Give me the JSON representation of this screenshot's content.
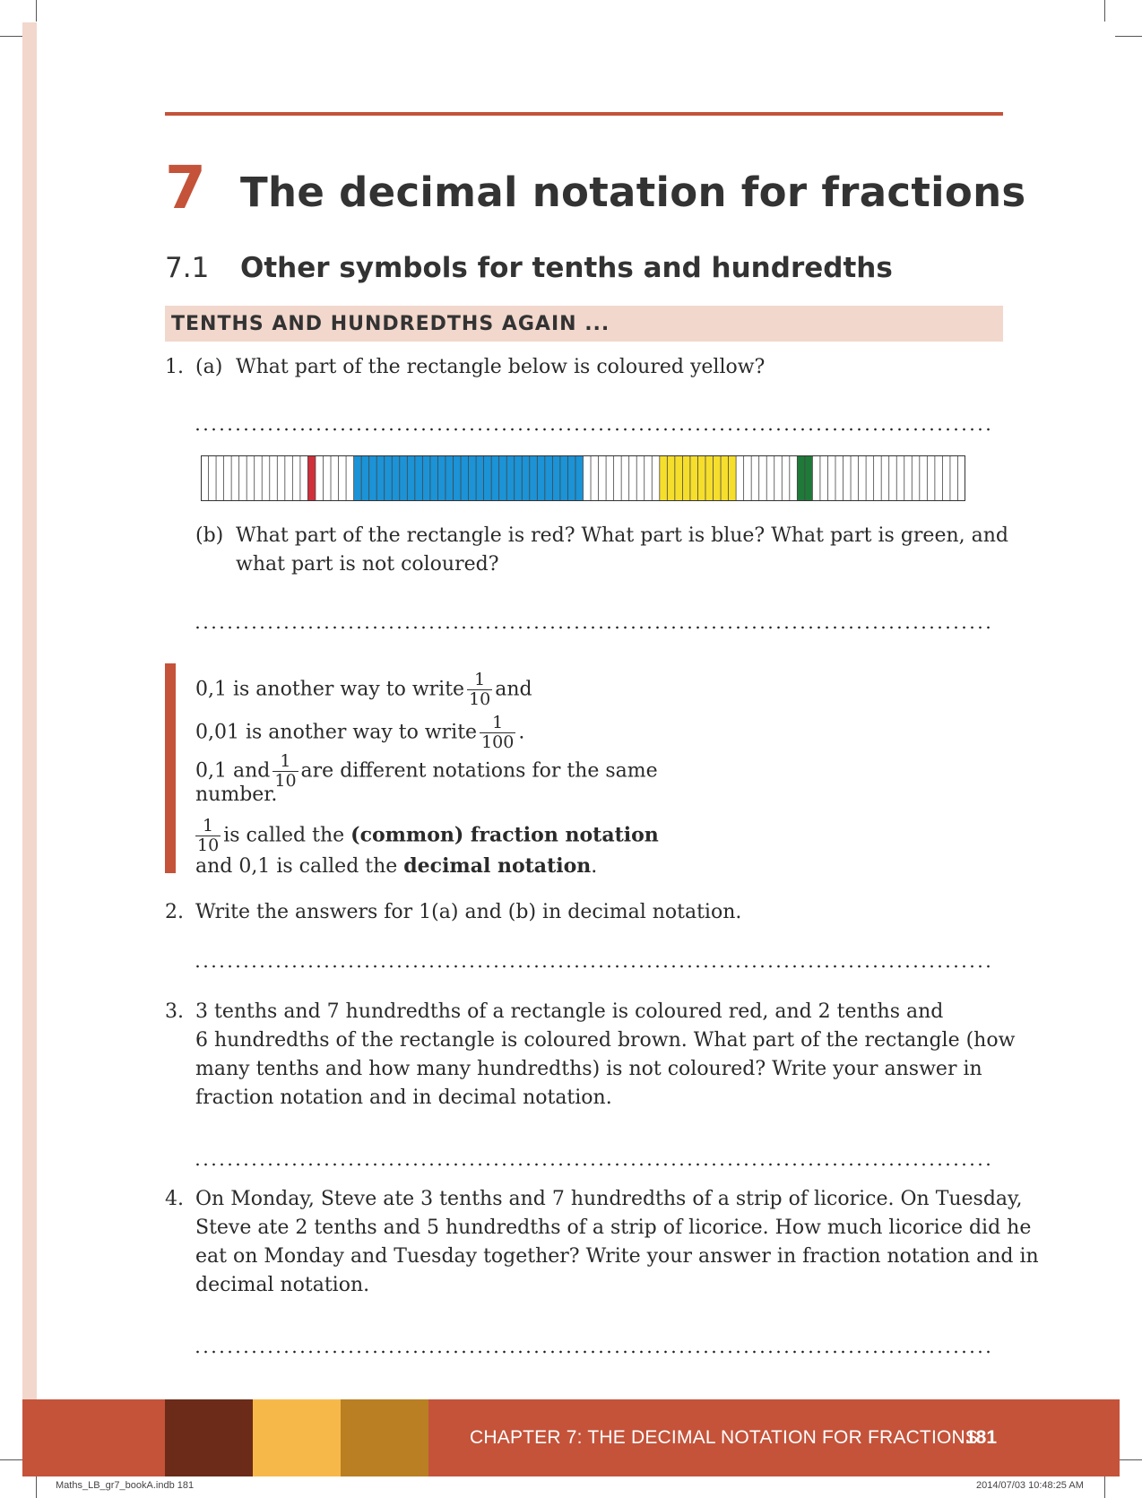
{
  "chapter": {
    "number": "7",
    "title": "The decimal notation for fractions"
  },
  "section": {
    "number": "7.1",
    "title": "Other symbols for tenths and hundredths"
  },
  "banner": "TENTHS AND HUNDREDTHS AGAIN ...",
  "q1": {
    "number": "1.",
    "a_label": "(a)",
    "a_text": "What part of the rectangle below is coloured yellow?",
    "b_label": "(b)",
    "b_line1": "What part of the rectangle is red? What part is blue? What part is green, and",
    "b_line2": "what part is not coloured?"
  },
  "strip": {
    "total_cells": 100,
    "segments": [
      {
        "colour": "red",
        "hex": "#d0303c",
        "start": 14,
        "count": 1
      },
      {
        "colour": "blue",
        "hex": "#1b93d6",
        "start": 20,
        "count": 30
      },
      {
        "colour": "yellow",
        "hex": "#f6de2c",
        "start": 60,
        "count": 10
      },
      {
        "colour": "green",
        "hex": "#1f7a3a",
        "start": 78,
        "count": 2
      }
    ]
  },
  "note": {
    "l1_pre": "0,1 is another way to write",
    "l1_num": "1",
    "l1_den": "10",
    "l1_post": "and",
    "l2_pre": "0,01 is another way to write",
    "l2_num": "1",
    "l2_den": "100",
    "l2_post": ".",
    "l3_pre": "0,1 and",
    "l3_num": "1",
    "l3_den": "10",
    "l3_post": "are different notations for the same",
    "l4": "number.",
    "l5_num": "1",
    "l5_den": "10",
    "l5_pre": "is called the",
    "l5_bold": "(common) fraction notation",
    "l6_pre": "and 0,1 is called the",
    "l6_bold": "decimal notation",
    "l6_post": "."
  },
  "q2": {
    "number": "2.",
    "text": "Write the answers for 1(a) and (b) in decimal notation."
  },
  "q3": {
    "number": "3.",
    "line1": "3 tenths and 7 hundredths of a rectangle is coloured red, and 2 tenths and",
    "line2": "6 hundredths of the rectangle is coloured brown. What part of the rectangle (how",
    "line3": "many tenths and how many hundredths) is not coloured? Write your answer in",
    "line4": "fraction notation and in decimal notation."
  },
  "q4": {
    "number": "4.",
    "line1": "On Monday, Steve ate 3 tenths and 7 hundredths of a strip of licorice. On Tuesday,",
    "line2": "Steve ate 2 tenths and 5 hundredths of a strip of licorice. How much licorice did he",
    "line3": "eat on Monday and Tuesday together? Write your answer in fraction notation and in",
    "line4": "decimal notation."
  },
  "footer": {
    "chapter_text": "CHAPTER 7: THE DECIMAL NOTATION FOR FRACTIONS",
    "page": "181",
    "colours": [
      "#6b2b18",
      "#f7b84a",
      "#b97f22"
    ]
  },
  "slug": {
    "file": "Maths_LB_gr7_bookA.indb   181",
    "timestamp": "2014/07/03   10:48:25 AM"
  }
}
